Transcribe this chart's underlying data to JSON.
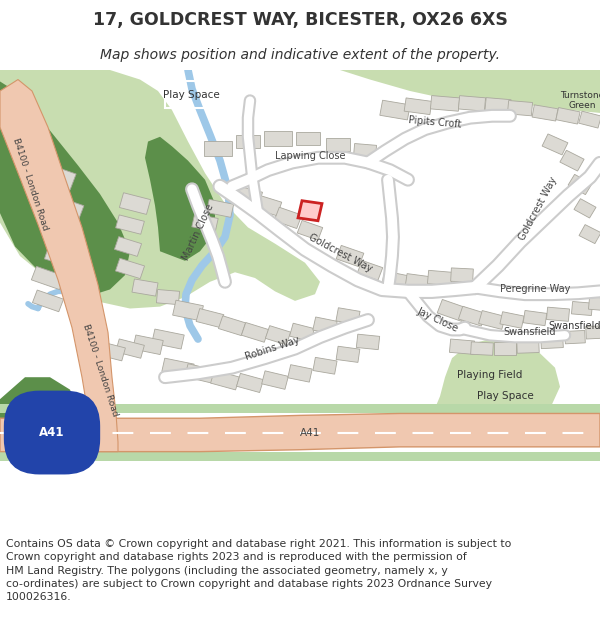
{
  "title_line1": "17, GOLDCREST WAY, BICESTER, OX26 6XS",
  "title_line2": "Map shows position and indicative extent of the property.",
  "footer_text": "Contains OS data © Crown copyright and database right 2021. This information is subject to Crown copyright and database rights 2023 and is reproduced with the permission of HM Land Registry. The polygons (including the associated geometry, namely x, y co-ordinates) are subject to Crown copyright and database rights 2023 Ordnance Survey 100026316.",
  "bg_color": "#f2f0eb",
  "green_light": "#c8ddb0",
  "green_dark": "#5c8f4a",
  "water_color": "#9ec8e8",
  "road_salmon": "#f0c8b0",
  "road_salmon_outline": "#d4956a",
  "road_white": "#ffffff",
  "road_outline": "#cccccc",
  "a41_green_light": "#b8d8a8",
  "a41_green_dark": "#4a7a3a",
  "building_fill": "#dcdad4",
  "building_edge": "#aaa89e",
  "highlight_fill": "#ffcccc",
  "highlight_edge": "#cc2222",
  "text_dark": "#333333",
  "text_road": "#444444"
}
